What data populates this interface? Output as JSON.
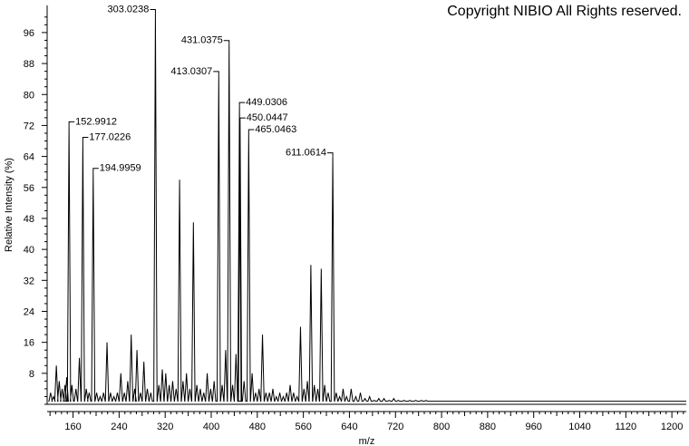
{
  "copyright": "Copyright NIBIO All Rights reserved.",
  "chart_data": {
    "type": "line",
    "title": "",
    "xlabel": "m/z",
    "ylabel": "Relative Intensity (%)",
    "xlim": [
      115,
      1225
    ],
    "ylim": [
      0,
      103
    ],
    "x_ticks": [
      160,
      240,
      320,
      400,
      480,
      560,
      640,
      720,
      800,
      880,
      960,
      1040,
      1120,
      1200
    ],
    "y_ticks": [
      8,
      16,
      24,
      32,
      40,
      48,
      56,
      64,
      72,
      80,
      88,
      96
    ],
    "grid": false,
    "peaks": [
      {
        "mz": 121,
        "intensity": 3
      },
      {
        "mz": 126,
        "intensity": 2
      },
      {
        "mz": 131,
        "intensity": 10
      },
      {
        "mz": 136,
        "intensity": 6
      },
      {
        "mz": 141,
        "intensity": 4
      },
      {
        "mz": 146,
        "intensity": 5
      },
      {
        "mz": 149,
        "intensity": 7
      },
      {
        "mz": 152.9912,
        "intensity": 72,
        "label": "152.9912"
      },
      {
        "mz": 158,
        "intensity": 5
      },
      {
        "mz": 165,
        "intensity": 4
      },
      {
        "mz": 171,
        "intensity": 12
      },
      {
        "mz": 177.0226,
        "intensity": 68,
        "label": "177.0226"
      },
      {
        "mz": 183,
        "intensity": 4
      },
      {
        "mz": 188,
        "intensity": 3
      },
      {
        "mz": 194.9959,
        "intensity": 60,
        "label": "194.9959"
      },
      {
        "mz": 201,
        "intensity": 3
      },
      {
        "mz": 207,
        "intensity": 2
      },
      {
        "mz": 213,
        "intensity": 3
      },
      {
        "mz": 219,
        "intensity": 16
      },
      {
        "mz": 225,
        "intensity": 3
      },
      {
        "mz": 231,
        "intensity": 2
      },
      {
        "mz": 237,
        "intensity": 3
      },
      {
        "mz": 243,
        "intensity": 8
      },
      {
        "mz": 249,
        "intensity": 3
      },
      {
        "mz": 255,
        "intensity": 6
      },
      {
        "mz": 261,
        "intensity": 18
      },
      {
        "mz": 267,
        "intensity": 4
      },
      {
        "mz": 271,
        "intensity": 14
      },
      {
        "mz": 277,
        "intensity": 3
      },
      {
        "mz": 283,
        "intensity": 11
      },
      {
        "mz": 289,
        "intensity": 4
      },
      {
        "mz": 295,
        "intensity": 3
      },
      {
        "mz": 303.0238,
        "intensity": 101,
        "label": "303.0238"
      },
      {
        "mz": 309,
        "intensity": 5
      },
      {
        "mz": 315,
        "intensity": 9
      },
      {
        "mz": 321,
        "intensity": 8
      },
      {
        "mz": 327,
        "intensity": 5
      },
      {
        "mz": 333,
        "intensity": 6
      },
      {
        "mz": 339,
        "intensity": 4
      },
      {
        "mz": 345,
        "intensity": 58
      },
      {
        "mz": 351,
        "intensity": 6
      },
      {
        "mz": 357,
        "intensity": 8
      },
      {
        "mz": 363,
        "intensity": 4
      },
      {
        "mz": 369,
        "intensity": 47
      },
      {
        "mz": 375,
        "intensity": 5
      },
      {
        "mz": 381,
        "intensity": 4
      },
      {
        "mz": 387,
        "intensity": 3
      },
      {
        "mz": 393,
        "intensity": 8
      },
      {
        "mz": 399,
        "intensity": 4
      },
      {
        "mz": 405,
        "intensity": 6
      },
      {
        "mz": 413.0307,
        "intensity": 85,
        "label": "413.0307"
      },
      {
        "mz": 419,
        "intensity": 5
      },
      {
        "mz": 425,
        "intensity": 14
      },
      {
        "mz": 431.0375,
        "intensity": 93,
        "label": "431.0375"
      },
      {
        "mz": 437,
        "intensity": 5
      },
      {
        "mz": 443,
        "intensity": 13
      },
      {
        "mz": 449.0306,
        "intensity": 77,
        "label": "449.0306"
      },
      {
        "mz": 450.0447,
        "intensity": 73,
        "label": "450.0447"
      },
      {
        "mz": 457,
        "intensity": 6
      },
      {
        "mz": 465.0463,
        "intensity": 70,
        "label": "465.0463"
      },
      {
        "mz": 471,
        "intensity": 8
      },
      {
        "mz": 477,
        "intensity": 3
      },
      {
        "mz": 483,
        "intensity": 4
      },
      {
        "mz": 489,
        "intensity": 18
      },
      {
        "mz": 495,
        "intensity": 3
      },
      {
        "mz": 501,
        "intensity": 3
      },
      {
        "mz": 507,
        "intensity": 4
      },
      {
        "mz": 513,
        "intensity": 2
      },
      {
        "mz": 519,
        "intensity": 3
      },
      {
        "mz": 525,
        "intensity": 2
      },
      {
        "mz": 531,
        "intensity": 3
      },
      {
        "mz": 537,
        "intensity": 5
      },
      {
        "mz": 543,
        "intensity": 3
      },
      {
        "mz": 549,
        "intensity": 2
      },
      {
        "mz": 555,
        "intensity": 20
      },
      {
        "mz": 561,
        "intensity": 4
      },
      {
        "mz": 567,
        "intensity": 6
      },
      {
        "mz": 573,
        "intensity": 36
      },
      {
        "mz": 579,
        "intensity": 5
      },
      {
        "mz": 585,
        "intensity": 4
      },
      {
        "mz": 591,
        "intensity": 35
      },
      {
        "mz": 597,
        "intensity": 5
      },
      {
        "mz": 603,
        "intensity": 3
      },
      {
        "mz": 611.0614,
        "intensity": 64,
        "label": "611.0614"
      },
      {
        "mz": 617,
        "intensity": 3
      },
      {
        "mz": 623,
        "intensity": 2
      },
      {
        "mz": 629,
        "intensity": 4
      },
      {
        "mz": 635,
        "intensity": 2
      },
      {
        "mz": 643,
        "intensity": 4
      },
      {
        "mz": 651,
        "intensity": 2
      },
      {
        "mz": 659,
        "intensity": 3
      },
      {
        "mz": 667,
        "intensity": 1.5
      },
      {
        "mz": 675,
        "intensity": 2
      },
      {
        "mz": 683,
        "intensity": 1
      },
      {
        "mz": 691,
        "intensity": 1.5
      },
      {
        "mz": 700,
        "intensity": 1.5
      },
      {
        "mz": 709,
        "intensity": 1
      },
      {
        "mz": 717,
        "intensity": 1.5
      },
      {
        "mz": 725,
        "intensity": 1
      },
      {
        "mz": 735,
        "intensity": 1
      },
      {
        "mz": 745,
        "intensity": 1
      },
      {
        "mz": 755,
        "intensity": 1
      },
      {
        "mz": 765,
        "intensity": 1
      },
      {
        "mz": 773,
        "intensity": 1
      },
      {
        "mz": 790,
        "intensity": 0.8
      },
      {
        "mz": 810,
        "intensity": 0.8
      },
      {
        "mz": 825,
        "intensity": 0.8
      },
      {
        "mz": 840,
        "intensity": 0.8
      },
      {
        "mz": 855,
        "intensity": 0.8
      },
      {
        "mz": 870,
        "intensity": 0.8
      },
      {
        "mz": 1087,
        "intensity": 0.8
      },
      {
        "mz": 1200,
        "intensity": 0.8
      }
    ]
  }
}
